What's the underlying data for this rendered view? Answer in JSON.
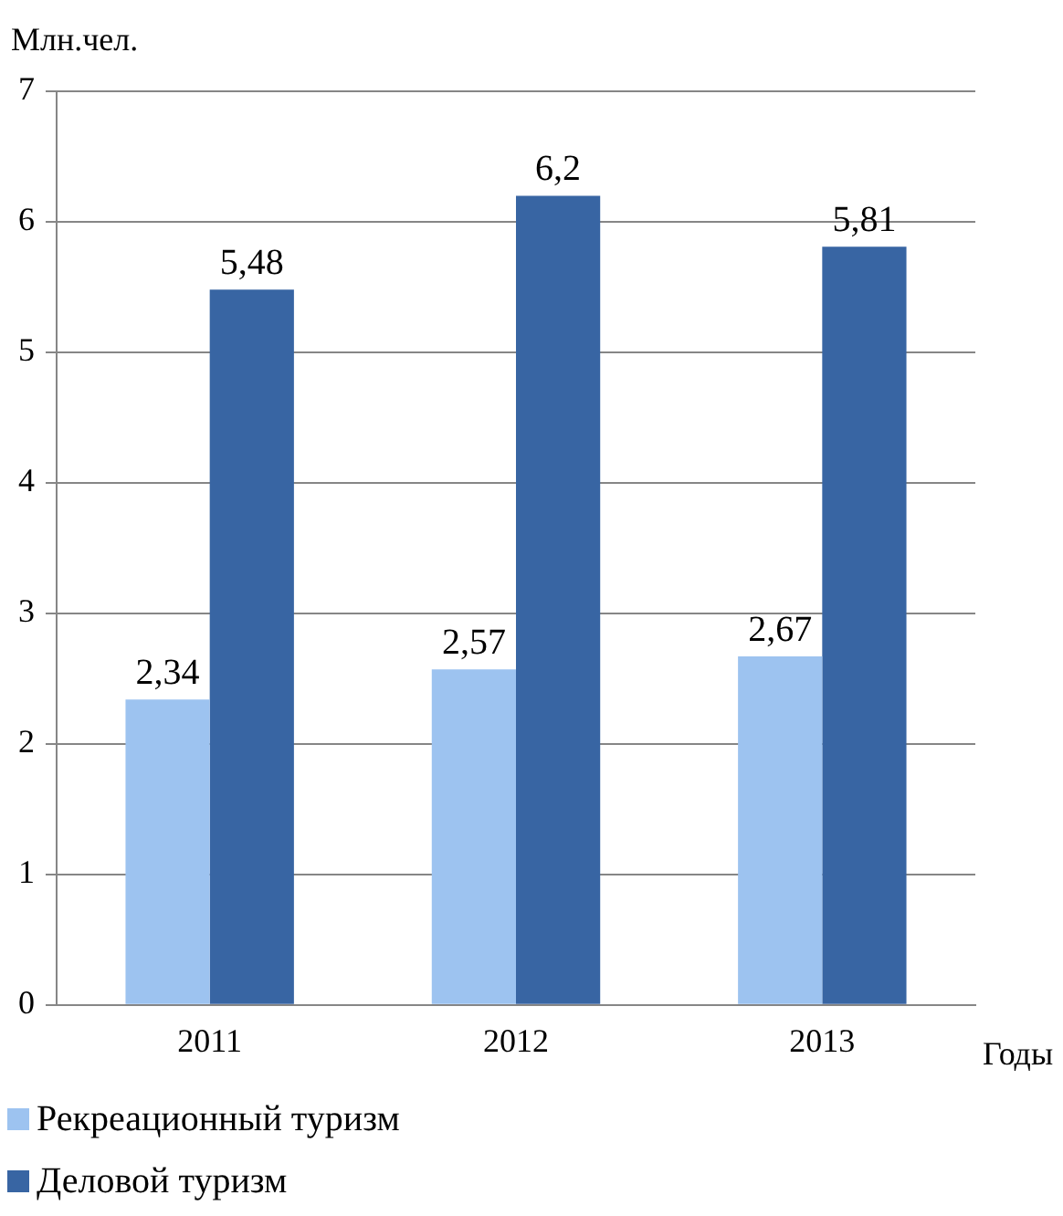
{
  "chart_data": {
    "type": "bar",
    "ylabel": "Млн.чел.",
    "xlabel": "Годы",
    "categories": [
      "2011",
      "2012",
      "2013"
    ],
    "series": [
      {
        "name": "Рекреационный туризм",
        "color": "#9dc3f0",
        "values": [
          2.34,
          2.57,
          2.67
        ],
        "value_labels": [
          "2,34",
          "2,57",
          "2,67"
        ]
      },
      {
        "name": "Деловой туризм",
        "color": "#3865a3",
        "values": [
          5.48,
          6.2,
          5.81
        ],
        "value_labels": [
          "5,48",
          "6,2",
          "5,81"
        ]
      }
    ],
    "ylim": [
      0,
      7
    ],
    "yticks": [
      0,
      1,
      2,
      3,
      4,
      5,
      6,
      7
    ],
    "grid": "y",
    "legend": "bottom left"
  }
}
